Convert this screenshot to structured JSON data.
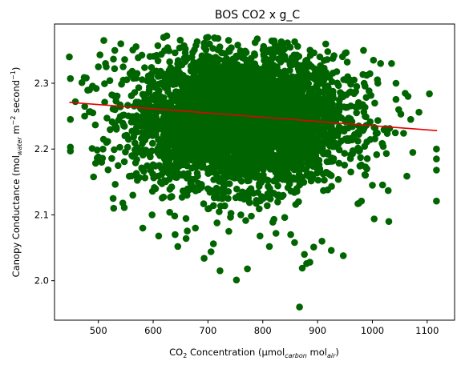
{
  "chart_data": {
    "type": "scatter",
    "title": "BOS CO2 x g_C",
    "xlabel": {
      "pre": "CO",
      "sub1": "2",
      "mid": " Concentration (μmol",
      "sub2": "carbon",
      "mid2": " mol",
      "sub3": "air",
      "post": ")"
    },
    "ylabel": {
      "pre": "Canopy Conductance (mol",
      "sub1": "water",
      "mid": " m",
      "sup1": "−2",
      "mid2": " second",
      "sup2": "−1",
      "post": ")"
    },
    "xlim": [
      420,
      1150
    ],
    "ylim": [
      1.94,
      2.39
    ],
    "xticks": [
      500,
      600,
      700,
      800,
      900,
      1000,
      1100
    ],
    "yticks": [
      2.0,
      2.1,
      2.2,
      2.3
    ],
    "grid": false,
    "point_color": "#006400",
    "fit_color": "#e60000",
    "fit_line": {
      "x": [
        447,
        1118
      ],
      "y": [
        2.271,
        2.228
      ]
    },
    "cloud": {
      "n": 4200,
      "x_center": 760,
      "x_spread": 95,
      "y_center": 2.245,
      "y_spread": 0.05
    },
    "points": [
      [
        447,
        2.34
      ],
      [
        449,
        2.307
      ],
      [
        449,
        2.245
      ],
      [
        449,
        2.203
      ],
      [
        449,
        2.197
      ],
      [
        458,
        2.272
      ],
      [
        470,
        2.301
      ],
      [
        478,
        2.308
      ],
      [
        475,
        2.25
      ],
      [
        484,
        2.29
      ],
      [
        490,
        2.255
      ],
      [
        496,
        2.292
      ],
      [
        500,
        2.325
      ],
      [
        503,
        2.343
      ],
      [
        506,
        2.18
      ],
      [
        510,
        2.365
      ],
      [
        513,
        2.33
      ],
      [
        515,
        2.21
      ],
      [
        521,
        2.304
      ],
      [
        527,
        2.125
      ],
      [
        528,
        2.11
      ],
      [
        530,
        2.35
      ],
      [
        536,
        2.175
      ],
      [
        541,
        2.36
      ],
      [
        548,
        2.336
      ],
      [
        563,
        2.13
      ],
      [
        567,
        2.16
      ],
      [
        581,
        2.08
      ],
      [
        598,
        2.1
      ],
      [
        610,
        2.068
      ],
      [
        625,
        2.372
      ],
      [
        640,
        2.07
      ],
      [
        645,
        2.052
      ],
      [
        660,
        2.064
      ],
      [
        677,
        2.08
      ],
      [
        693,
        2.034
      ],
      [
        710,
        2.056
      ],
      [
        722,
        2.015
      ],
      [
        738,
        2.075
      ],
      [
        752,
        2.001
      ],
      [
        760,
        2.1
      ],
      [
        772,
        2.018
      ],
      [
        795,
        2.068
      ],
      [
        812,
        2.052
      ],
      [
        824,
        2.072
      ],
      [
        840,
        2.096
      ],
      [
        851,
        2.07
      ],
      [
        858,
        2.058
      ],
      [
        867,
        1.96
      ],
      [
        872,
        2.019
      ],
      [
        876,
        2.04
      ],
      [
        880,
        2.026
      ],
      [
        886,
        2.028
      ],
      [
        893,
        2.051
      ],
      [
        908,
        2.06
      ],
      [
        925,
        2.046
      ],
      [
        947,
        2.038
      ],
      [
        930,
        2.342
      ],
      [
        955,
        2.31
      ],
      [
        985,
        2.3
      ],
      [
        1002,
        2.335
      ],
      [
        1010,
        2.3
      ],
      [
        1015,
        2.33
      ],
      [
        1030,
        2.09
      ],
      [
        1035,
        2.33
      ],
      [
        1043,
        2.3
      ],
      [
        1048,
        2.26
      ],
      [
        1052,
        2.253
      ],
      [
        1057,
        2.224
      ],
      [
        1065,
        2.28
      ],
      [
        1070,
        2.245
      ],
      [
        1085,
        2.256
      ],
      [
        1104,
        2.284
      ],
      [
        1117,
        2.2
      ],
      [
        1117,
        2.185
      ],
      [
        1117,
        2.168
      ],
      [
        1117,
        2.121
      ],
      [
        1000,
        2.145
      ],
      [
        990,
        2.17
      ],
      [
        980,
        2.121
      ]
    ]
  }
}
